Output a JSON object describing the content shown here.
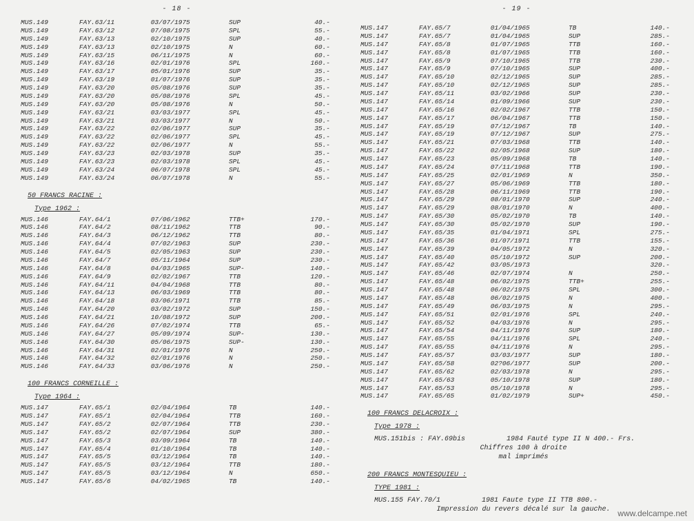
{
  "page_left_num": "- 18 -",
  "page_right_num": "- 19 -",
  "footer": "www.delcampe.net",
  "left": {
    "block1": [
      [
        "MUS.149",
        "FAY.63/11",
        "03/07/1975",
        "SUP",
        "40.-"
      ],
      [
        "MUS.149",
        "FAY.63/12",
        "07/08/1975",
        "SPL",
        "55.-"
      ],
      [
        "MUS.149",
        "FAY.63/13",
        "02/10/1975",
        "SUP",
        "40.-"
      ],
      [
        "MUS.149",
        "FAY.63/13",
        "02/10/1975",
        "N",
        "60.-"
      ],
      [
        "MUS.149",
        "FAY.63/15",
        "06/11/1975",
        "N",
        "60.-"
      ],
      [
        "MUS.149",
        "FAY.63/16",
        "02/01/1976",
        "SPL",
        "160.-"
      ],
      [
        "MUS.149",
        "FAY.63/17",
        "05/01/1976",
        "SUP",
        "35.-"
      ],
      [
        "MUS.149",
        "FAY.63/19",
        "01/07/1976",
        "SUP",
        "35.-"
      ],
      [
        "MUS.149",
        "FAY.63/20",
        "05/08/1976",
        "SUP",
        "35.-"
      ],
      [
        "MUS.149",
        "FAY.63/20",
        "05/08/1976",
        "SPL",
        "45.-"
      ],
      [
        "MUS.149",
        "FAY.63/20",
        "05/08/1976",
        "N",
        "50.-"
      ],
      [
        "MUS.149",
        "FAY.63/21",
        "03/03/1977",
        "SPL",
        "45.-"
      ],
      [
        "MUS.149",
        "FAY.63/21",
        "03/03/1977",
        "N",
        "50.-"
      ],
      [
        "MUS.149",
        "FAY.63/22",
        "02/06/1977",
        "SUP",
        "35.-"
      ],
      [
        "MUS.149",
        "FAY.63/22",
        "02/06/1977",
        "SPL",
        "45.-"
      ],
      [
        "MUS.149",
        "FAY.63/22",
        "02/06/1977",
        "N",
        "55.-"
      ],
      [
        "MUS.149",
        "FAY.63/23",
        "02/03/1978",
        "SUP",
        "35.-"
      ],
      [
        "MUS.149",
        "FAY.63/23",
        "02/03/1978",
        "SPL",
        "45.-"
      ],
      [
        "MUS.149",
        "FAY.63/24",
        "06/07/1978",
        "SPL",
        "45.-"
      ],
      [
        "MUS.149",
        "FAY.63/24",
        "06/07/1978",
        "N",
        "55.-"
      ]
    ],
    "section2_title": "50 FRANCS RACINE :",
    "section2_sub": "Type 1962 :",
    "block2": [
      [
        "MUS.146",
        "FAY.64/1",
        "07/06/1962",
        "TTB+",
        "170.-"
      ],
      [
        "MUS.146",
        "FAY.64/2",
        "08/11/1962",
        "TTB",
        "90.-"
      ],
      [
        "MUS.146",
        "FAY.64/3",
        "06/12/1962",
        "TTB",
        "80.-"
      ],
      [
        "MUS.146",
        "FAY.64/4",
        "07/02/1963",
        "SUP",
        "230.-"
      ],
      [
        "MUS.146",
        "FAY.64/5",
        "02/05/1963",
        "SUP",
        "230.-"
      ],
      [
        "MUS.146",
        "FAY.64/7",
        "05/11/1964",
        "SUP",
        "230.-"
      ],
      [
        "MUS.146",
        "FAY.64/8",
        "04/03/1965",
        "SUP-",
        "140.-"
      ],
      [
        "MUS.146",
        "FAY.64/9",
        "02/02/1967",
        "TTB",
        "120.-"
      ],
      [
        "MUS.146",
        "FAY.64/11",
        "04/04/1968",
        "TTB",
        "80.-"
      ],
      [
        "MUS.146",
        "FAY.64/13",
        "06/03/1969",
        "TTB",
        "80.-"
      ],
      [
        "MUS.146",
        "FAY.64/18",
        "03/06/1971",
        "TTB",
        "85.-"
      ],
      [
        "MUS.146",
        "FAY.64/20",
        "03/02/1972",
        "SUP",
        "150.-"
      ],
      [
        "MUS.146",
        "FAY.64/21",
        "10/08/1972",
        "SUP",
        "200.-"
      ],
      [
        "MUS.146",
        "FAY.64/26",
        "07/02/1974",
        "TTB",
        "65.-"
      ],
      [
        "MUS.146",
        "FAY.64/27",
        "05/09/1974",
        "SUP-",
        "130.-"
      ],
      [
        "MUS.146",
        "FAY.64/30",
        "05/06/1975",
        "SUP-",
        "130.-"
      ],
      [
        "MUS.146",
        "FAY.64/31",
        "02/01/1976",
        "N",
        "250.-"
      ],
      [
        "MUS.146",
        "FAY.64/32",
        "02/01/1976",
        "N",
        "250.-"
      ],
      [
        "MUS.146",
        "FAY.64/33",
        "03/06/1976",
        "N",
        "250.-"
      ]
    ],
    "section3_title": "100 FRANCS CORNEILLE :",
    "section3_sub": "Type 1964 :",
    "block3": [
      [
        "MUS.147",
        "FAY.65/1",
        "02/04/1964",
        "TB",
        "140.-"
      ],
      [
        "MUS.147",
        "FAY.65/1",
        "02/04/1964",
        "TTB",
        "160.-"
      ],
      [
        "MUS.147",
        "FAY.65/2",
        "02/07/1964",
        "TTB",
        "230.-"
      ],
      [
        "MUS.147",
        "FAY.65/2",
        "02/07/1964",
        "SUP",
        "380.-"
      ],
      [
        "MUS.147",
        "FAY.65/3",
        "03/09/1964",
        "TB",
        "140.-"
      ],
      [
        "MUS.147",
        "FAY.65/4",
        "01/10/1964",
        "TB",
        "140.-"
      ],
      [
        "MUS.147",
        "FAY.65/5",
        "03/12/1964",
        "TB",
        "140.-"
      ],
      [
        "MUS.147",
        "FAY.65/5",
        "03/12/1964",
        "TTB",
        "180.-"
      ],
      [
        "MUS.147",
        "FAY.65/5",
        "03/12/1964",
        "N",
        "650.-"
      ],
      [
        "MUS.147",
        "FAY.65/6",
        "04/02/1965",
        "TB",
        "140.-"
      ]
    ]
  },
  "right": {
    "block1": [
      [
        "MUS.147",
        "FAY.65/7",
        "01/04/1965",
        "TB",
        "140.-"
      ],
      [
        "MUS.147",
        "FAY.65/7",
        "01/04/1965",
        "SUP",
        "285.-"
      ],
      [
        "MUS.147",
        "FAY.65/8",
        "01/07/1965",
        "TTB",
        "160.-"
      ],
      [
        "MUS.147",
        "FAY.65/8",
        "01/07/1965",
        "TTB",
        "160.-"
      ],
      [
        "MUS.147",
        "FAY.65/9",
        "07/10/1965",
        "TTB",
        "230.-"
      ],
      [
        "MUS.147",
        "FAY.65/9",
        "07/10/1965",
        "SUP",
        "400.-"
      ],
      [
        "MUS.147",
        "FAY.65/10",
        "02/12/1965",
        "SUP",
        "285.-"
      ],
      [
        "MUS.147",
        "FAY.65/10",
        "02/12/1965",
        "SUP",
        "285.-"
      ],
      [
        "MUS.147",
        "FAY.65/11",
        "03/02/1966",
        "SUP",
        "230.-"
      ],
      [
        "MUS.147",
        "FAY.65/14",
        "01/09/1966",
        "SUP",
        "230.-"
      ],
      [
        "MUS.147",
        "FAY.65/16",
        "02/02/1967",
        "TTB",
        "150.-"
      ],
      [
        "MUS.147",
        "FAY.65/17",
        "06/04/1967",
        "TTB",
        "150.-"
      ],
      [
        "MUS.147",
        "FAY.65/19",
        "07/12/1967",
        "TB",
        "140.-"
      ],
      [
        "MUS.147",
        "FAY.65/19",
        "07/12/1967",
        "SUP",
        "275.-"
      ],
      [
        "MUS.147",
        "FAY.65/21",
        "07/03/1968",
        "TTB",
        "140.-"
      ],
      [
        "MUS.147",
        "FAY.65/22",
        "02/05/1968",
        "SUP",
        "180.-"
      ],
      [
        "MUS.147",
        "FAY.65/23",
        "05/09/1968",
        "TB",
        "140.-"
      ],
      [
        "MUS.147",
        "FAY.65/24",
        "07/11/1968",
        "TTB",
        "190.-"
      ],
      [
        "MUS.147",
        "FAY.65/25",
        "02/01/1969",
        "N",
        "350.-"
      ],
      [
        "MUS.147",
        "FAY.65/27",
        "05/06/1969",
        "TTB",
        "180.-"
      ],
      [
        "MUS.147",
        "FAY.65/28",
        "06/11/1969",
        "TTB",
        "190.-"
      ],
      [
        "MUS.147",
        "FAY.65/29",
        "08/01/1970",
        "SUP",
        "240.-"
      ],
      [
        "MUS.147",
        "FAY.65/29",
        "08/01/1970",
        "N",
        "400.-"
      ],
      [
        "MUS.147",
        "FAY.65/30",
        "05/02/1970",
        "TB",
        "140.-"
      ],
      [
        "MUS.147",
        "FAY.65/30",
        "05/02/1970",
        "SUP",
        "190.-"
      ],
      [
        "MUS.147",
        "FAY.65/35",
        "01/04/1971",
        "SPL",
        "275.-"
      ],
      [
        "MUS.147",
        "FAY.65/36",
        "01/07/1971",
        "TTB",
        "155.-"
      ],
      [
        "MUS.147",
        "FAY.65/39",
        "04/05/1972",
        "N",
        "320.-"
      ],
      [
        "MUS.147",
        "FAY.65/40",
        "05/10/1972",
        "SUP",
        "200.-"
      ],
      [
        "MUS.147",
        "FAY.65/42",
        "03/05/1973",
        "",
        "320.-"
      ],
      [
        "MUS.147",
        "FAY.65/46",
        "02/07/1974",
        "N",
        "250.-"
      ],
      [
        "MUS.147",
        "FAY.65/48",
        "06/02/1975",
        "TTB+",
        "255.-"
      ],
      [
        "MUS.147",
        "FAY.65/48",
        "06/02/1975",
        "SPL",
        "300.-"
      ],
      [
        "MUS.147",
        "FAY.65/48",
        "06/02/1975",
        "N",
        "400.-"
      ],
      [
        "MUS.147",
        "FAY.65/49",
        "06/03/1975",
        "N",
        "295.-"
      ],
      [
        "MUS.147",
        "FAY.65/51",
        "02/01/1976",
        "SPL",
        "240.-"
      ],
      [
        "MUS.147",
        "FAY.65/52",
        "04/03/1976",
        "N",
        "295.-"
      ],
      [
        "MUS.147",
        "FAY.65/54",
        "04/11/1976",
        "SUP",
        "180.-"
      ],
      [
        "MUS.147",
        "FAY.65/55",
        "04/11/1976",
        "SPL",
        "240.-"
      ],
      [
        "MUS.147",
        "FAY.65/55",
        "04/11/1976",
        "N",
        "295.-"
      ],
      [
        "MUS.147",
        "FAY.65/57",
        "03/03/1977",
        "SUP",
        "180.-"
      ],
      [
        "MUS.147",
        "FAY.65/58",
        "02?06/1977",
        "SUP",
        "200.-"
      ],
      [
        "MUS.147",
        "FAY.65/62",
        "02/03/1978",
        "N",
        "295.-"
      ],
      [
        "MUS.147",
        "FAY.65/63",
        "05/10/1978",
        "SUP",
        "180.-"
      ],
      [
        "MUS.147",
        "FAY.65/53",
        "05/10/1978",
        "N",
        "295.-"
      ],
      [
        "MUS.147",
        "FAY.65/65",
        "01/02/1979",
        "SUP+",
        "450.-"
      ]
    ],
    "section2_title": "100 FRANCS DELACROIX :",
    "section2_sub": "Type 1978 :",
    "delacroix_line": "MUS.151bis :   FAY.69bis",
    "delacroix_note1": "1984 Fauté type II  N      400.- Frs.",
    "delacroix_note2": "Chiffres 100 à droite",
    "delacroix_note3": "mal imprimés",
    "section3_title": "200 FRANCS MONTESQUIEU :",
    "section3_sub": "TYPE 1981 :",
    "montesquieu_line": "MUS.155        FAY.70/1",
    "montesquieu_note1": "1981 Faute type II  TTB     800.-",
    "montesquieu_note2": "Impression du revers décalé sur la gauche."
  }
}
